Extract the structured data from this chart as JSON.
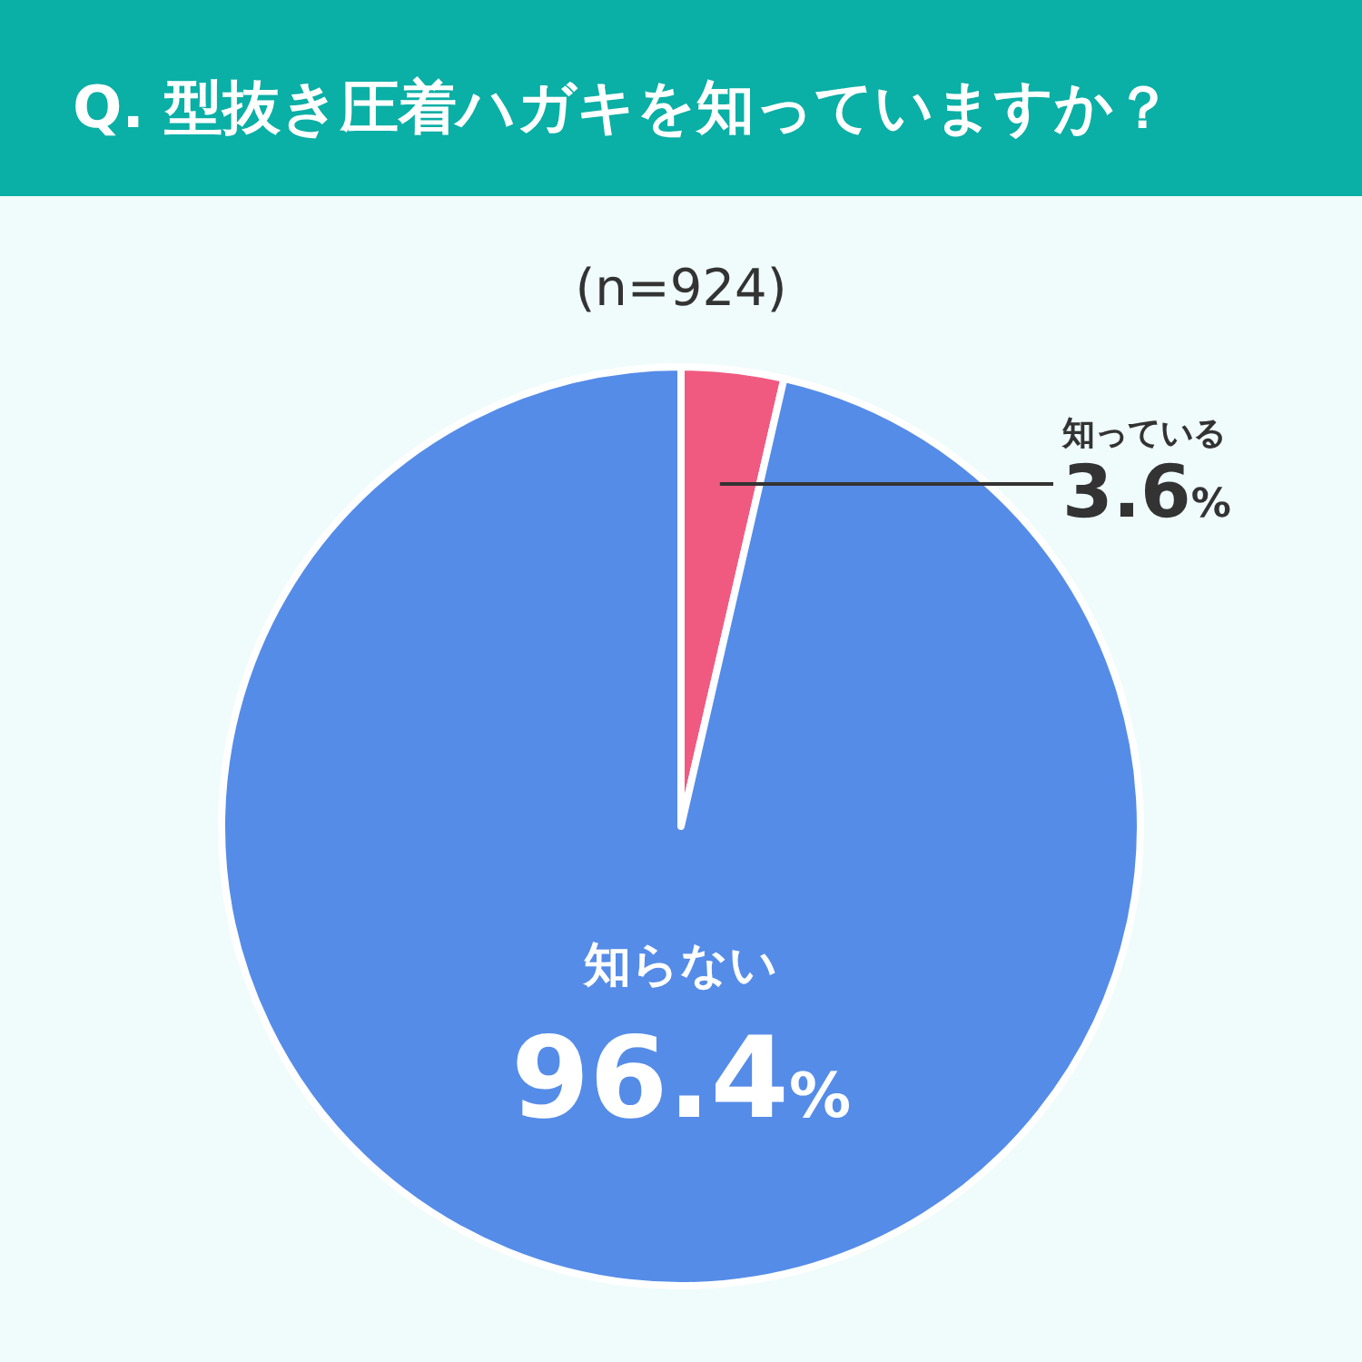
{
  "chart_data": {
    "type": "pie",
    "title": "Q. 型抜き圧着ハガキを知っていますか？",
    "subtitle": "(n=924)",
    "categories": [
      "知っている",
      "知らない"
    ],
    "values": [
      3.6,
      96.4
    ],
    "colors": [
      "#f05a80",
      "#558ce8"
    ],
    "value_labels": [
      "3.6%",
      "96.4%"
    ]
  }
}
